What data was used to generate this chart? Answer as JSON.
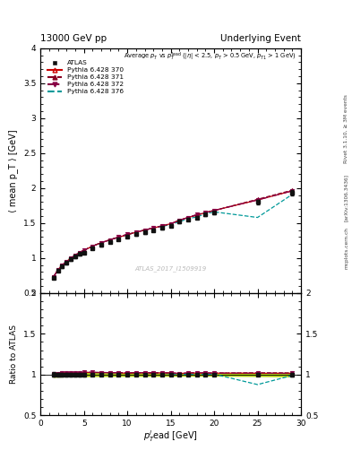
{
  "title_left": "13000 GeV pp",
  "title_right": "Underlying Event",
  "right_label_1": "Rivet 3.1.10, ≥ 3M events",
  "right_label_2": "[arXiv:1306.3436]",
  "right_label_3": "mcplots.cern.ch",
  "watermark": "ATLAS_2017_I1509919",
  "ylabel_main": "⟨ mean p_T ⟩ [GeV]",
  "ylabel_ratio": "Ratio to ATLAS",
  "xlabel": "p_T^{l}ead [GeV]",
  "xlim": [
    0,
    30
  ],
  "ylim_main": [
    0.5,
    4.0
  ],
  "ylim_ratio": [
    0.5,
    2.0
  ],
  "yticks_main": [
    0.5,
    1.0,
    1.5,
    2.0,
    2.5,
    3.0,
    3.5,
    4.0
  ],
  "yticks_ratio": [
    0.5,
    1.0,
    1.5,
    2.0
  ],
  "xticks": [
    0,
    5,
    10,
    15,
    20,
    25,
    30
  ],
  "data_x": [
    1.5,
    2.0,
    2.5,
    3.0,
    3.5,
    4.0,
    4.5,
    5.0,
    6.0,
    7.0,
    8.0,
    9.0,
    10.0,
    11.0,
    12.0,
    13.0,
    14.0,
    15.0,
    16.0,
    17.0,
    18.0,
    19.0,
    20.0,
    25.0,
    29.0
  ],
  "data_y": [
    0.72,
    0.82,
    0.88,
    0.93,
    0.98,
    1.02,
    1.06,
    1.08,
    1.14,
    1.19,
    1.23,
    1.27,
    1.31,
    1.34,
    1.37,
    1.4,
    1.43,
    1.46,
    1.52,
    1.55,
    1.58,
    1.62,
    1.65,
    1.8,
    1.93
  ],
  "data_yerr": [
    0.02,
    0.02,
    0.02,
    0.02,
    0.02,
    0.02,
    0.02,
    0.02,
    0.02,
    0.02,
    0.02,
    0.02,
    0.02,
    0.02,
    0.02,
    0.02,
    0.02,
    0.02,
    0.02,
    0.02,
    0.02,
    0.02,
    0.02,
    0.03,
    0.04
  ],
  "py370_y": [
    0.73,
    0.83,
    0.9,
    0.95,
    1.0,
    1.04,
    1.08,
    1.11,
    1.17,
    1.22,
    1.26,
    1.3,
    1.33,
    1.37,
    1.4,
    1.43,
    1.46,
    1.49,
    1.54,
    1.58,
    1.61,
    1.65,
    1.68,
    1.83,
    1.96
  ],
  "py371_y": [
    0.73,
    0.83,
    0.9,
    0.95,
    1.0,
    1.04,
    1.08,
    1.11,
    1.17,
    1.22,
    1.26,
    1.3,
    1.34,
    1.37,
    1.4,
    1.43,
    1.46,
    1.49,
    1.54,
    1.58,
    1.62,
    1.65,
    1.68,
    1.84,
    1.97
  ],
  "py372_y": [
    0.73,
    0.83,
    0.9,
    0.95,
    1.0,
    1.04,
    1.08,
    1.11,
    1.17,
    1.22,
    1.26,
    1.3,
    1.34,
    1.37,
    1.4,
    1.43,
    1.46,
    1.49,
    1.54,
    1.58,
    1.62,
    1.65,
    1.68,
    1.83,
    1.96
  ],
  "py376_y": [
    0.73,
    0.83,
    0.9,
    0.95,
    1.0,
    1.04,
    1.08,
    1.11,
    1.17,
    1.22,
    1.26,
    1.3,
    1.33,
    1.37,
    1.4,
    1.43,
    1.45,
    1.48,
    1.52,
    1.56,
    1.59,
    1.63,
    1.66,
    1.58,
    1.91
  ],
  "color_370": "#cc0000",
  "color_371": "#880022",
  "color_372": "#880044",
  "color_376": "#009999",
  "color_band": "#aacc00",
  "color_data": "#111111"
}
